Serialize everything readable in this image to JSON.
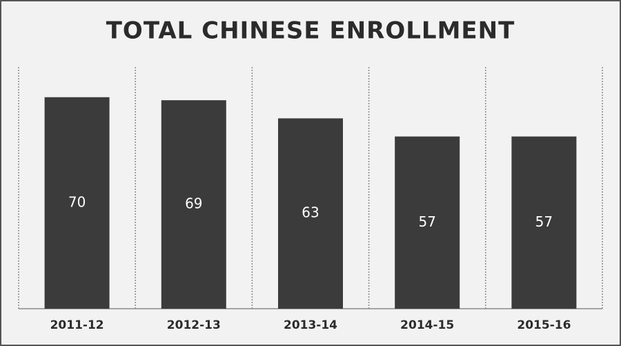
{
  "chart_data": {
    "type": "bar",
    "title": "TOTAL CHINESE ENROLLMENT",
    "categories": [
      "2011-12",
      "2012-13",
      "2013-14",
      "2014-15",
      "2015-16"
    ],
    "values": [
      70,
      69,
      63,
      57,
      57
    ],
    "color": "#3b3b3b",
    "ylim": [
      0,
      80
    ]
  }
}
